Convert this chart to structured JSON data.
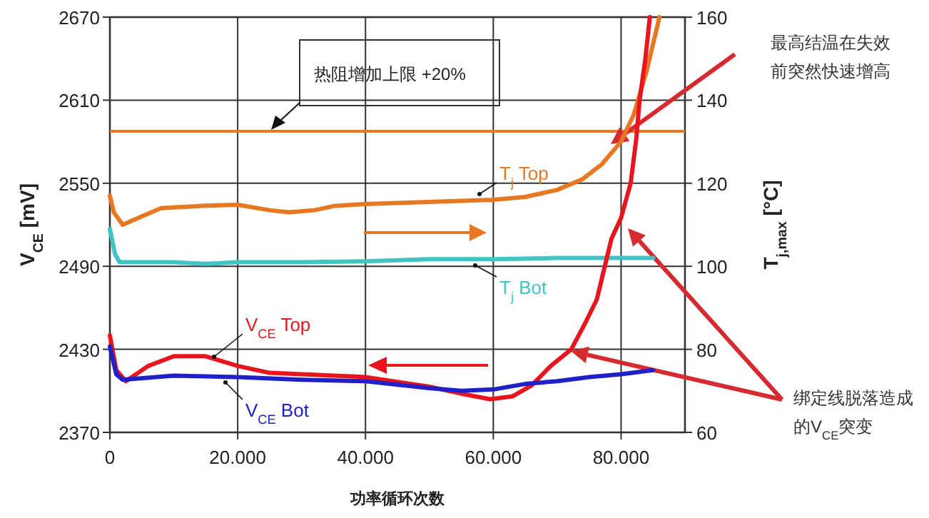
{
  "chart_data": {
    "type": "line",
    "xlabel": "功率循环次数",
    "ylabel": "V$_{CE}$ [mV]",
    "y2label": "T$_{j,max}$ [°C]",
    "xlim": [
      0,
      90000
    ],
    "xticks": [
      0,
      {
        "value": 20000,
        "label": "20.000"
      },
      {
        "value": 40000,
        "label": "40.000"
      },
      {
        "value": 60000,
        "label": "60.000"
      },
      {
        "value": 80000,
        "label": "80.000"
      }
    ],
    "ylim": [
      2370,
      2670
    ],
    "yticks": [
      2370,
      2430,
      2490,
      2550,
      2610,
      2670
    ],
    "y2lim": [
      60,
      160
    ],
    "y2ticks": [
      60,
      80,
      100,
      120,
      140,
      160
    ],
    "grid": true,
    "legend": false,
    "marker": "none",
    "line_style": "solid",
    "series": [
      {
        "name": "T$_{j}$ Top",
        "color": "#e87722",
        "axis": "y2",
        "x": [
          0,
          600,
          2000,
          5000,
          8000,
          15000,
          20000,
          25000,
          28000,
          32000,
          35000,
          40000,
          50000,
          60000,
          65000,
          70000,
          74000,
          77000,
          80000,
          82000,
          84000,
          86000
        ],
        "values": [
          117,
          113,
          110,
          112,
          114,
          114.6,
          114.8,
          113.5,
          113,
          113.5,
          114.5,
          115,
          115.5,
          116,
          116.7,
          118.4,
          121,
          124.6,
          130,
          136.6,
          147,
          160
        ]
      },
      {
        "name": "T$_{j}$ Bot",
        "color": "#40c4c4",
        "axis": "y2",
        "x": [
          0,
          800,
          1500,
          10000,
          15000,
          20000,
          30000,
          40000,
          50000,
          60000,
          70000,
          80000,
          85000
        ],
        "values": [
          109,
          103,
          101,
          101,
          100.6,
          101,
          101,
          101.2,
          101.7,
          101.7,
          102,
          102,
          102
        ]
      },
      {
        "name": "V$_{CE}$ Top",
        "color": "#e8141e",
        "x": [
          0,
          1000,
          2500,
          6000,
          10000,
          15000,
          20000,
          25000,
          30000,
          40000,
          50000,
          55000,
          59500,
          63000,
          66000,
          69000,
          72200,
          74500,
          76200,
          77300,
          78500,
          80000,
          81500,
          82400,
          82900,
          83800,
          84500
        ],
        "values": [
          2440,
          2415,
          2407,
          2418,
          2425,
          2425,
          2418,
          2413,
          2412,
          2410,
          2403,
          2398,
          2394,
          2396,
          2404,
          2418,
          2430,
          2450,
          2466,
          2487,
          2510,
          2525,
          2550,
          2583,
          2610,
          2640,
          2670
        ]
      },
      {
        "name": "V$_{CE}$ Bot",
        "color": "#2020c8",
        "x": [
          0,
          1000,
          2000,
          10000,
          20000,
          30000,
          40000,
          50000,
          55000,
          60000,
          65000,
          70000,
          75000,
          80000,
          85000
        ],
        "values": [
          2432,
          2412,
          2408,
          2411,
          2410,
          2408,
          2407,
          2402,
          2400,
          2401,
          2405,
          2407,
          2410,
          2412,
          2415
        ]
      }
    ],
    "ref_lines": [
      {
        "axis": "y2",
        "value": 132.5,
        "label": "热阻增加上限 +20%",
        "color": "#e87722"
      }
    ],
    "annotations": [
      "最高结温在失效前突然快速增高",
      "绑定线脱落造成的V$_{CE}$突变"
    ]
  }
}
